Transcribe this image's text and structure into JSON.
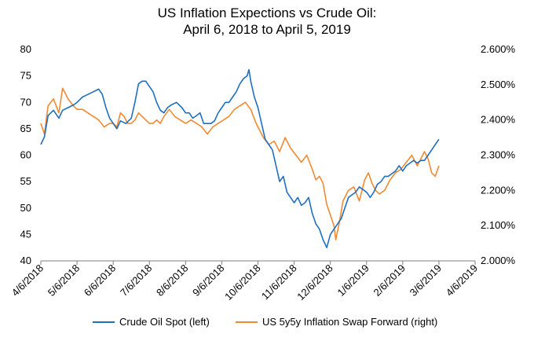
{
  "chart_data": {
    "type": "line",
    "title": [
      "US Inflation Expections vs Crude Oil:",
      "April 6, 2018 to April 5, 2019"
    ],
    "x_tick_labels": [
      "4/6/2018",
      "5/6/2018",
      "6/6/2018",
      "7/6/2018",
      "8/6/2018",
      "9/6/2018",
      "10/6/2018",
      "11/6/2018",
      "12/6/2018",
      "1/6/2019",
      "2/6/2019",
      "3/6/2019",
      "4/6/2019"
    ],
    "y_left": {
      "ylim": [
        40,
        80
      ],
      "ticks": [
        40,
        45,
        50,
        55,
        60,
        65,
        70,
        75,
        80
      ],
      "tick_labels": [
        "40",
        "45",
        "50",
        "55",
        "60",
        "65",
        "70",
        "75",
        "80"
      ]
    },
    "y_right": {
      "ylim": [
        2.0,
        2.6
      ],
      "ticks": [
        2.0,
        2.1,
        2.2,
        2.3,
        2.4,
        2.5,
        2.6
      ],
      "tick_labels": [
        "2.000%",
        "2.100%",
        "2.200%",
        "2.300%",
        "2.400%",
        "2.500%",
        "2.600%"
      ]
    },
    "grid": false,
    "legend_position": "bottom",
    "series": [
      {
        "name": "Crude Oil Spot (left)",
        "axis": "left",
        "color": "#1f6fbf",
        "points": [
          [
            0,
            62
          ],
          [
            0.1,
            63.5
          ],
          [
            0.2,
            67.5
          ],
          [
            0.35,
            68.5
          ],
          [
            0.5,
            67
          ],
          [
            0.6,
            68.5
          ],
          [
            0.75,
            69
          ],
          [
            0.9,
            69.5
          ],
          [
            1,
            70
          ],
          [
            1.15,
            71
          ],
          [
            1.3,
            71.5
          ],
          [
            1.45,
            72
          ],
          [
            1.6,
            72.5
          ],
          [
            1.7,
            71.5
          ],
          [
            1.8,
            69
          ],
          [
            1.9,
            67
          ],
          [
            2,
            66
          ],
          [
            2.1,
            65
          ],
          [
            2.2,
            66.5
          ],
          [
            2.35,
            66
          ],
          [
            2.5,
            67
          ],
          [
            2.6,
            70
          ],
          [
            2.7,
            73.5
          ],
          [
            2.8,
            74
          ],
          [
            2.9,
            74
          ],
          [
            3,
            73
          ],
          [
            3.1,
            72
          ],
          [
            3.2,
            70
          ],
          [
            3.3,
            68.5
          ],
          [
            3.4,
            68
          ],
          [
            3.5,
            69
          ],
          [
            3.6,
            69.5
          ],
          [
            3.75,
            70
          ],
          [
            3.9,
            69
          ],
          [
            4,
            68
          ],
          [
            4.1,
            68
          ],
          [
            4.2,
            67
          ],
          [
            4.3,
            67.5
          ],
          [
            4.4,
            68
          ],
          [
            4.5,
            66
          ],
          [
            4.6,
            66
          ],
          [
            4.7,
            66
          ],
          [
            4.8,
            66.5
          ],
          [
            4.9,
            68
          ],
          [
            5,
            69
          ],
          [
            5.1,
            70
          ],
          [
            5.2,
            70
          ],
          [
            5.3,
            71
          ],
          [
            5.4,
            72
          ],
          [
            5.5,
            73.5
          ],
          [
            5.6,
            74.5
          ],
          [
            5.7,
            75
          ],
          [
            5.75,
            76.2
          ],
          [
            5.8,
            74
          ],
          [
            5.9,
            71
          ],
          [
            6,
            69
          ],
          [
            6.1,
            66
          ],
          [
            6.2,
            63
          ],
          [
            6.3,
            62
          ],
          [
            6.4,
            61
          ],
          [
            6.5,
            58
          ],
          [
            6.6,
            55
          ],
          [
            6.7,
            56
          ],
          [
            6.8,
            53
          ],
          [
            6.9,
            52
          ],
          [
            7,
            51
          ],
          [
            7.1,
            52
          ],
          [
            7.2,
            50.5
          ],
          [
            7.3,
            51
          ],
          [
            7.4,
            52
          ],
          [
            7.5,
            49
          ],
          [
            7.6,
            47
          ],
          [
            7.7,
            46
          ],
          [
            7.8,
            44
          ],
          [
            7.9,
            42.5
          ],
          [
            8,
            45
          ],
          [
            8.1,
            46
          ],
          [
            8.2,
            47
          ],
          [
            8.3,
            48
          ],
          [
            8.4,
            50
          ],
          [
            8.5,
            52
          ],
          [
            8.6,
            52.5
          ],
          [
            8.7,
            53
          ],
          [
            8.8,
            54
          ],
          [
            8.9,
            53.5
          ],
          [
            9,
            53
          ],
          [
            9.1,
            52
          ],
          [
            9.2,
            53
          ],
          [
            9.3,
            54.5
          ],
          [
            9.4,
            55
          ],
          [
            9.5,
            56
          ],
          [
            9.6,
            56
          ],
          [
            9.7,
            56.5
          ],
          [
            9.8,
            57
          ],
          [
            9.9,
            58
          ],
          [
            10,
            57
          ],
          [
            10.1,
            58
          ],
          [
            10.2,
            58.5
          ],
          [
            10.3,
            59
          ],
          [
            10.4,
            58.5
          ],
          [
            10.5,
            59
          ],
          [
            10.6,
            59
          ],
          [
            10.7,
            60
          ],
          [
            10.8,
            61
          ],
          [
            10.9,
            62
          ],
          [
            11,
            63
          ]
        ]
      },
      {
        "name": "US 5y5y Inflation Swap Forward (right)",
        "axis": "right",
        "color": "#ef8a32",
        "points": [
          [
            0,
            2.39
          ],
          [
            0.1,
            2.36
          ],
          [
            0.2,
            2.44
          ],
          [
            0.35,
            2.46
          ],
          [
            0.5,
            2.42
          ],
          [
            0.6,
            2.49
          ],
          [
            0.75,
            2.46
          ],
          [
            0.9,
            2.44
          ],
          [
            1,
            2.43
          ],
          [
            1.15,
            2.43
          ],
          [
            1.3,
            2.42
          ],
          [
            1.45,
            2.41
          ],
          [
            1.6,
            2.4
          ],
          [
            1.75,
            2.38
          ],
          [
            1.9,
            2.39
          ],
          [
            2,
            2.39
          ],
          [
            2.1,
            2.38
          ],
          [
            2.2,
            2.42
          ],
          [
            2.3,
            2.41
          ],
          [
            2.4,
            2.39
          ],
          [
            2.5,
            2.39
          ],
          [
            2.6,
            2.4
          ],
          [
            2.7,
            2.42
          ],
          [
            2.8,
            2.41
          ],
          [
            2.9,
            2.4
          ],
          [
            3,
            2.39
          ],
          [
            3.1,
            2.39
          ],
          [
            3.2,
            2.4
          ],
          [
            3.3,
            2.39
          ],
          [
            3.4,
            2.41
          ],
          [
            3.55,
            2.43
          ],
          [
            3.7,
            2.41
          ],
          [
            3.85,
            2.4
          ],
          [
            4,
            2.39
          ],
          [
            4.15,
            2.4
          ],
          [
            4.3,
            2.39
          ],
          [
            4.45,
            2.38
          ],
          [
            4.6,
            2.36
          ],
          [
            4.75,
            2.38
          ],
          [
            4.9,
            2.39
          ],
          [
            5.05,
            2.4
          ],
          [
            5.2,
            2.41
          ],
          [
            5.35,
            2.43
          ],
          [
            5.5,
            2.44
          ],
          [
            5.65,
            2.45
          ],
          [
            5.8,
            2.43
          ],
          [
            5.95,
            2.39
          ],
          [
            6.05,
            2.37
          ],
          [
            6.15,
            2.35
          ],
          [
            6.3,
            2.33
          ],
          [
            6.45,
            2.34
          ],
          [
            6.6,
            2.31
          ],
          [
            6.75,
            2.35
          ],
          [
            6.9,
            2.32
          ],
          [
            7.05,
            2.3
          ],
          [
            7.2,
            2.28
          ],
          [
            7.35,
            2.3
          ],
          [
            7.5,
            2.26
          ],
          [
            7.6,
            2.23
          ],
          [
            7.7,
            2.24
          ],
          [
            7.8,
            2.22
          ],
          [
            7.9,
            2.16
          ],
          [
            8,
            2.13
          ],
          [
            8.1,
            2.1
          ],
          [
            8.15,
            2.06
          ],
          [
            8.25,
            2.11
          ],
          [
            8.35,
            2.17
          ],
          [
            8.5,
            2.2
          ],
          [
            8.65,
            2.21
          ],
          [
            8.8,
            2.17
          ],
          [
            8.95,
            2.23
          ],
          [
            9.05,
            2.25
          ],
          [
            9.15,
            2.22
          ],
          [
            9.25,
            2.2
          ],
          [
            9.35,
            2.19
          ],
          [
            9.5,
            2.2
          ],
          [
            9.65,
            2.23
          ],
          [
            9.8,
            2.25
          ],
          [
            9.95,
            2.26
          ],
          [
            10.1,
            2.28
          ],
          [
            10.25,
            2.3
          ],
          [
            10.4,
            2.27
          ],
          [
            10.5,
            2.29
          ],
          [
            10.6,
            2.31
          ],
          [
            10.7,
            2.29
          ],
          [
            10.8,
            2.25
          ],
          [
            10.9,
            2.24
          ],
          [
            11,
            2.27
          ]
        ]
      }
    ]
  }
}
